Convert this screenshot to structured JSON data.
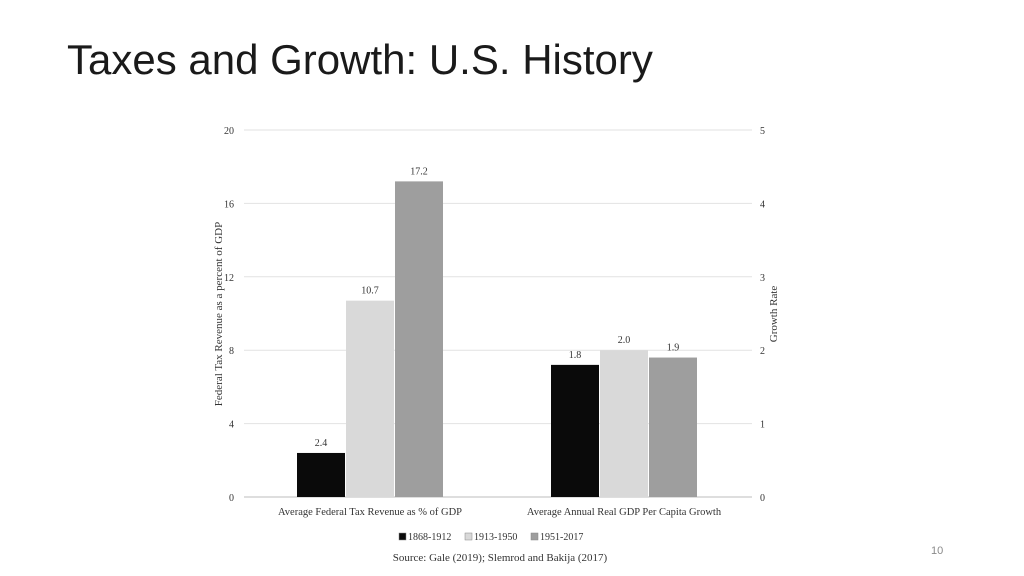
{
  "slide": {
    "title": "Taxes and Growth: U.S. History",
    "page_number": "10"
  },
  "chart_data": {
    "type": "bar",
    "categories": [
      "Average Federal Tax Revenue as % of GDP",
      "Average Annual Real GDP Per Capita Growth"
    ],
    "series": [
      {
        "name": "1868-1912",
        "color": "#0a0a0a",
        "values": [
          2.4,
          1.8
        ],
        "labels": [
          "2.4",
          "1.8"
        ]
      },
      {
        "name": "1913-1950",
        "color": "#d9d9d9",
        "values": [
          10.7,
          2.0
        ],
        "labels": [
          "10.7",
          "2.0"
        ]
      },
      {
        "name": "1951-2017",
        "color": "#9e9e9e",
        "values": [
          17.2,
          1.9
        ],
        "labels": [
          "17.2",
          "1.9"
        ]
      }
    ],
    "value_axis_by_category": [
      "left",
      "right"
    ],
    "ylabel_left": "Federal Tax Revenue as a percent of GDP",
    "ylabel_right": "Growth Rate",
    "ylim_left": [
      0,
      20
    ],
    "ylim_right": [
      0,
      5
    ],
    "yticks_left": [
      "0",
      "4",
      "8",
      "12",
      "16",
      "20"
    ],
    "yticks_right": [
      "0",
      "1",
      "2",
      "3",
      "4",
      "5"
    ],
    "grid": true,
    "legend_position": "bottom",
    "source": "Source: Gale (2019); Slemrod and Bakija (2017)"
  }
}
